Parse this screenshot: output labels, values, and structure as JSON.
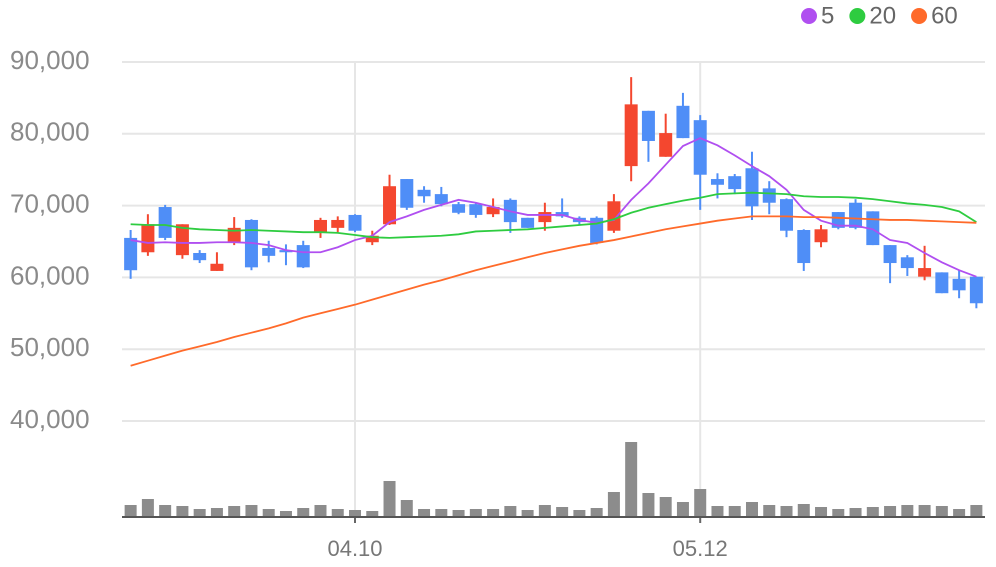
{
  "chart_data": {
    "type": "candlestick",
    "categories": [
      null,
      null,
      null,
      null,
      null,
      null,
      null,
      null,
      null,
      null,
      null,
      null,
      null,
      "04.10",
      null,
      null,
      null,
      null,
      null,
      null,
      null,
      null,
      null,
      null,
      null,
      null,
      null,
      null,
      null,
      null,
      null,
      null,
      null,
      "05.12",
      null,
      null,
      null,
      null,
      null,
      null,
      null,
      null,
      null,
      null,
      null,
      null,
      null,
      null,
      null,
      null
    ],
    "open": [
      65500,
      63500,
      69800,
      63100,
      63400,
      60900,
      64800,
      68000,
      64100,
      63800,
      64500,
      66300,
      66900,
      68700,
      64900,
      67400,
      73700,
      72200,
      71600,
      70200,
      70200,
      68800,
      70800,
      68300,
      67700,
      69100,
      68300,
      68300,
      66500,
      75500,
      83200,
      76800,
      83900,
      81900,
      73700,
      74100,
      75200,
      72400,
      70900,
      66600,
      64900,
      69100,
      70400,
      69200,
      64500,
      62800,
      60100,
      60700,
      59800,
      60100
    ],
    "high": [
      66600,
      68800,
      70100,
      67400,
      63800,
      63500,
      68400,
      68100,
      65100,
      64600,
      65100,
      68300,
      68500,
      68800,
      66500,
      74300,
      73700,
      72700,
      72600,
      70500,
      70400,
      71000,
      71000,
      68300,
      70400,
      71000,
      68500,
      68500,
      71600,
      87900,
      83200,
      82800,
      85700,
      82600,
      74500,
      74400,
      77500,
      73400,
      71000,
      66700,
      67300,
      69100,
      70900,
      69200,
      64500,
      63100,
      64400,
      60700,
      61000,
      60100
    ],
    "low": [
      59800,
      63000,
      65200,
      62600,
      62000,
      60900,
      64500,
      61000,
      62100,
      61700,
      61300,
      65500,
      66300,
      66300,
      64500,
      67300,
      69400,
      70400,
      69900,
      68800,
      68300,
      68400,
      66200,
      66900,
      66500,
      68300,
      67300,
      64600,
      66200,
      73400,
      76100,
      76800,
      79400,
      69400,
      71000,
      71600,
      68000,
      68800,
      65600,
      60900,
      64200,
      66700,
      66700,
      64500,
      59200,
      60200,
      59600,
      57800,
      57100,
      55700
    ],
    "close": [
      61000,
      67400,
      65500,
      67400,
      62400,
      61900,
      66900,
      61400,
      63000,
      63500,
      61400,
      68000,
      68000,
      66500,
      65800,
      72700,
      69700,
      71300,
      70200,
      69000,
      68700,
      69800,
      67700,
      66900,
      69100,
      68500,
      67700,
      64800,
      70600,
      84100,
      79000,
      80100,
      79400,
      74300,
      72900,
      72300,
      69900,
      70400,
      66500,
      62000,
      66700,
      66900,
      66900,
      64500,
      62000,
      61300,
      61300,
      57800,
      58200,
      56400
    ],
    "up_color": "#f4472f",
    "down_color": "#4f8ef7",
    "series": [
      {
        "name": "5",
        "color": "#b04ff0",
        "values": [
          65200,
          64800,
          64900,
          64800,
          64800,
          64900,
          64900,
          64800,
          64500,
          63800,
          63500,
          63500,
          64200,
          65200,
          65800,
          67700,
          68500,
          69400,
          70100,
          70800,
          70400,
          69800,
          69200,
          68700,
          68700,
          68700,
          68000,
          67600,
          68000,
          70800,
          73100,
          75700,
          78300,
          79400,
          78400,
          77000,
          75500,
          74100,
          72200,
          69400,
          67900,
          67200,
          67200,
          66700,
          65200,
          64800,
          63400,
          62100,
          61000,
          60100
        ]
      },
      {
        "name": "20",
        "color": "#2ecc40",
        "values": [
          67400,
          67300,
          67300,
          66900,
          66700,
          66600,
          66500,
          66600,
          66500,
          66400,
          66300,
          66300,
          66200,
          65900,
          65600,
          65500,
          65600,
          65700,
          65800,
          66000,
          66400,
          66500,
          66600,
          66700,
          66900,
          67100,
          67300,
          67500,
          68100,
          69000,
          69700,
          70200,
          70700,
          71100,
          71600,
          71700,
          71800,
          71700,
          71600,
          71300,
          71200,
          71200,
          71100,
          70900,
          70600,
          70300,
          70100,
          69800,
          69200,
          67700
        ]
      },
      {
        "name": "60",
        "color": "#ff6a2a",
        "values": [
          47700,
          48400,
          49100,
          49800,
          50400,
          51000,
          51700,
          52300,
          52900,
          53600,
          54400,
          55000,
          55600,
          56200,
          56900,
          57600,
          58300,
          59000,
          59600,
          60300,
          61000,
          61600,
          62200,
          62800,
          63400,
          63900,
          64400,
          64800,
          65200,
          65700,
          66200,
          66700,
          67100,
          67500,
          67900,
          68200,
          68500,
          68500,
          68500,
          68400,
          68400,
          68300,
          68200,
          68100,
          68000,
          68000,
          67900,
          67800,
          67700,
          67600
        ]
      }
    ],
    "volume": [
      12,
      18,
      12,
      11,
      8,
      9,
      11,
      12,
      8,
      6,
      9,
      12,
      8,
      7,
      6,
      36,
      17,
      8,
      8,
      7,
      8,
      8,
      11,
      7,
      12,
      10,
      7,
      9,
      25,
      75,
      24,
      20,
      15,
      28,
      11,
      11,
      15,
      12,
      11,
      13,
      10,
      8,
      9,
      10,
      11,
      12,
      12,
      11,
      8,
      12
    ],
    "volume_color": "#8c8c8c",
    "volume_ylim": [
      0,
      80
    ],
    "ylim": [
      40000,
      90000
    ],
    "yticks": [
      {
        "value": 40000,
        "label": "40,000"
      },
      {
        "value": 50000,
        "label": "50,000"
      },
      {
        "value": 60000,
        "label": "60,000"
      },
      {
        "value": 70000,
        "label": "70,000"
      },
      {
        "value": 80000,
        "label": "80,000"
      },
      {
        "value": 90000,
        "label": "90,000"
      }
    ],
    "grid": true
  }
}
